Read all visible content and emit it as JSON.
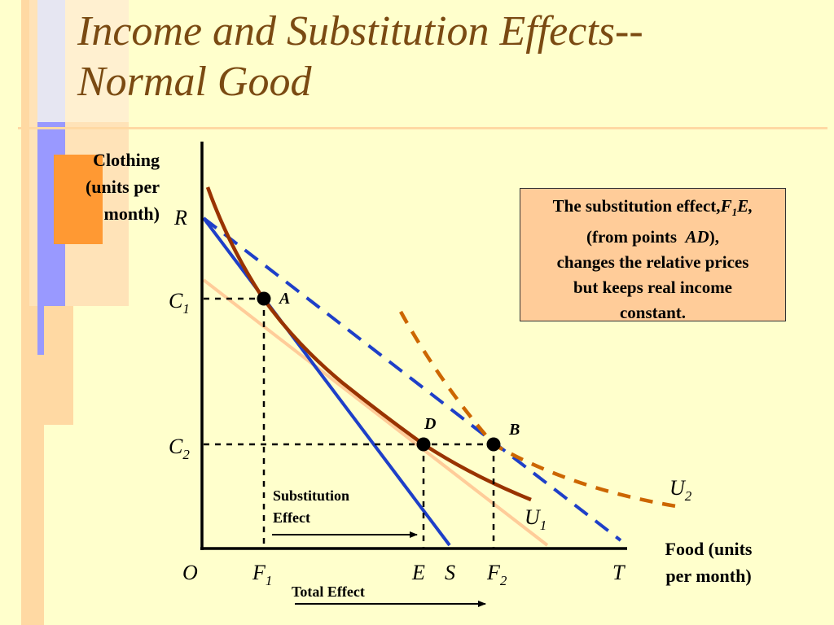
{
  "title": {
    "line1": "Income and Substitution Effects--",
    "line2": "Normal Good"
  },
  "axes": {
    "y_label": [
      "Clothing",
      "(units per",
      "month)"
    ],
    "x_label": [
      "Food (units",
      "per month)"
    ],
    "origin": "O"
  },
  "y_ticks": {
    "R": "R",
    "C1": {
      "base": "C",
      "sub": "1"
    },
    "C2": {
      "base": "C",
      "sub": "2"
    }
  },
  "x_ticks": {
    "F1": {
      "base": "F",
      "sub": "1"
    },
    "E": "E",
    "S": "S",
    "F2": {
      "base": "F",
      "sub": "2"
    },
    "T": "T"
  },
  "points": {
    "A": "A",
    "D": "D",
    "B": "B"
  },
  "curves": {
    "U1": {
      "base": "U",
      "sub": "1"
    },
    "U2": {
      "base": "U",
      "sub": "2"
    }
  },
  "annotations": {
    "substitution_effect": [
      "Substitution",
      "Effect"
    ],
    "total_effect": "Total Effect"
  },
  "info_box": {
    "line1_prefix": "The substitution effect,",
    "line1_F": "F",
    "line1_sub": "1",
    "line1_E": "E,",
    "line2_prefix": "(from points  ",
    "line2_points": "AD",
    "line2_suffix": "),",
    "line3": "changes the relative prices",
    "line4": "but keeps real income",
    "line5": "constant."
  },
  "colors": {
    "title": "#7a4a12",
    "background": "#ffffcc",
    "budget_line_initial": "#1e3fc8",
    "budget_line_new_dashed": "#1e3fc8",
    "budget_line_compensated": "#ffcc99",
    "indifference_u1": "#993300",
    "indifference_u2": "#cc6600",
    "info_box_fill": "#ffcc99"
  }
}
